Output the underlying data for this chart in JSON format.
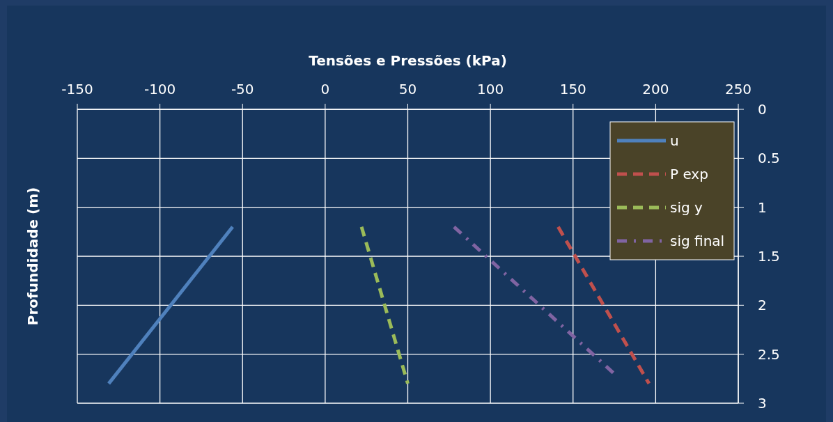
{
  "chart_data": {
    "type": "line",
    "xlabel": "Tensões e Pressões (kPa)",
    "ylabel": "Profundidade (m)",
    "xlim": [
      -150,
      250
    ],
    "xticks": [
      -150,
      -100,
      -50,
      0,
      50,
      100,
      150,
      200,
      250
    ],
    "ylim": [
      3,
      0
    ],
    "yticks": [
      0,
      0.5,
      1,
      1.5,
      2,
      2.5,
      3
    ],
    "grid": true,
    "legend": "top right",
    "series": [
      {
        "name": "u",
        "color": "#4f81bd",
        "line_style": "solid",
        "x": [
          -56,
          -131
        ],
        "values": [
          1.2,
          2.8
        ]
      },
      {
        "name": "P exp",
        "color": "#c0504d",
        "line_style": "dashed",
        "x": [
          141,
          196
        ],
        "values": [
          1.2,
          2.8
        ]
      },
      {
        "name": "sig y",
        "color": "#9bbb59",
        "line_style": "dashed",
        "x": [
          22,
          50
        ],
        "values": [
          1.2,
          2.8
        ]
      },
      {
        "name": "sig final",
        "color": "#8064a2",
        "line_style": "dashdot",
        "x": [
          78,
          175
        ],
        "values": [
          1.2,
          2.7
        ]
      }
    ]
  }
}
